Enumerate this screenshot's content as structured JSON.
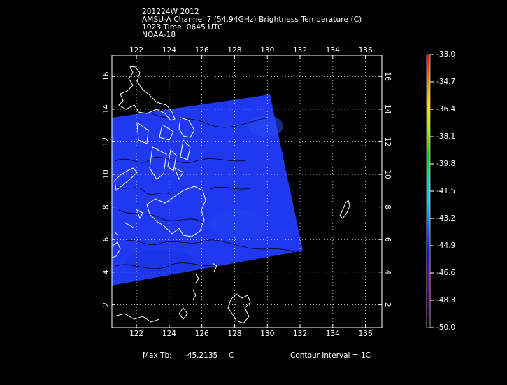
{
  "title": {
    "line1": "201224W 2012",
    "line2": "AMSU-A Channel 7 (54.94GHz) Brightness Temperature (C)",
    "line3": "1023 Time: 0645 UTC",
    "line4": "NOAA-18"
  },
  "map": {
    "lon_ticks": [
      "122",
      "124",
      "126",
      "128",
      "130",
      "132",
      "134",
      "136"
    ],
    "lat_ticks": [
      "16",
      "14",
      "12",
      "10",
      "8",
      "6",
      "4",
      "2"
    ],
    "lon_range": [
      120.5,
      137
    ],
    "lat_range": [
      0.6,
      17.3
    ],
    "swath_color": "#1f38f0",
    "coastline_color": "#ffffff",
    "contour_color": "#000000",
    "grid_style": "dotted-white"
  },
  "colorbar": {
    "labels": [
      "-33.0",
      "-34.7",
      "-36.4",
      "-38.1",
      "-39.8",
      "-41.5",
      "-43.2",
      "-44.9",
      "-46.6",
      "-48.3",
      "-50.0"
    ],
    "range": [
      -50.0,
      -33.0
    ],
    "colors_top_to_bottom": [
      "#ff0000",
      "#ff7a00",
      "#ffd800",
      "#a8e800",
      "#00d800",
      "#00d8a0",
      "#00c8ff",
      "#0060ff",
      "#1010e0",
      "#5a00a8",
      "#3a0050",
      "#000000"
    ]
  },
  "footer": {
    "max_tb_label": "Max Tb:",
    "max_tb_value": "-45.2135",
    "max_tb_unit": "C",
    "contour_interval": "Contour Interval = 1C"
  }
}
